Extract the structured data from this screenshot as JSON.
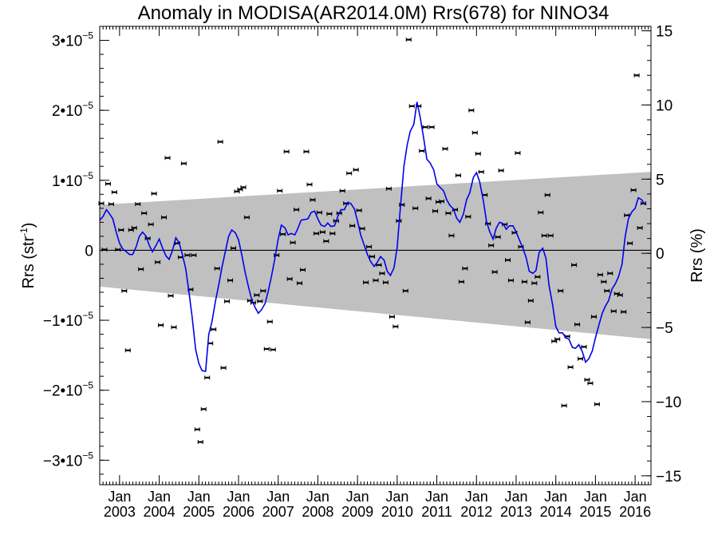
{
  "chart_data": {
    "type": "scatter",
    "title": "Anomaly in MODISA(AR2014.0M) Rrs(678) for NINO34",
    "ylabel_left": "Rrs (str",
    "ylabel_left_sup": "-1",
    "ylabel_left_close": ")",
    "ylabel_right": "Rrs (%)",
    "xlim": [
      2002.5,
      2016.4
    ],
    "ylim": [
      -3.35e-05,
      3.2e-05
    ],
    "y_right_lim": [
      -15.6,
      15.3
    ],
    "grid": false,
    "left_ticks": [
      {
        "v": 3e-05,
        "m": "3",
        "e": "−5"
      },
      {
        "v": 2e-05,
        "m": "2",
        "e": "−5"
      },
      {
        "v": 1e-05,
        "m": "1",
        "e": "−5"
      },
      {
        "v": 0,
        "plain": "0"
      },
      {
        "v": -1e-05,
        "m": "−1",
        "e": "−5"
      },
      {
        "v": -2e-05,
        "m": "−2",
        "e": "−5"
      },
      {
        "v": -3e-05,
        "m": "−3",
        "e": "−5"
      }
    ],
    "right_ticks": [
      15,
      10,
      5,
      0,
      -5,
      -10,
      -15
    ],
    "right_tick_labels": [
      "15",
      "10",
      "5",
      "0",
      "−5",
      "−10",
      "−15"
    ],
    "x_ticks": [
      {
        "x": 2003,
        "l1": "Jan",
        "l2": "2003"
      },
      {
        "x": 2004,
        "l1": "Jan",
        "l2": "2004"
      },
      {
        "x": 2005,
        "l1": "Jan",
        "l2": "2005"
      },
      {
        "x": 2006,
        "l1": "Jan",
        "l2": "2006"
      },
      {
        "x": 2007,
        "l1": "Jan",
        "l2": "2007"
      },
      {
        "x": 2008,
        "l1": "Jan",
        "l2": "2008"
      },
      {
        "x": 2009,
        "l1": "Jan",
        "l2": "2009"
      },
      {
        "x": 2010,
        "l1": "Jan",
        "l2": "2010"
      },
      {
        "x": 2011,
        "l1": "Jan",
        "l2": "2011"
      },
      {
        "x": 2012,
        "l1": "Jan",
        "l2": "2012"
      },
      {
        "x": 2013,
        "l1": "Jan",
        "l2": "2013"
      },
      {
        "x": 2014,
        "l1": "Jan",
        "l2": "2014"
      },
      {
        "x": 2015,
        "l1": "Jan",
        "l2": "2015"
      },
      {
        "x": 2016,
        "l1": "Jan",
        "l2": "2016"
      }
    ],
    "band": {
      "upper": [
        [
          2002.5,
          6.5e-06
        ],
        [
          2016.4,
          1.12e-05
        ]
      ],
      "lower": [
        [
          2002.5,
          -5.2e-06
        ],
        [
          2016.4,
          -1.27e-05
        ]
      ],
      "color": "#c0c0c0"
    },
    "line_color": "#0000ee",
    "points": [
      [
        2002.54,
        6.7e-06
      ],
      [
        2002.62,
        1e-07
      ],
      [
        2002.71,
        9.5e-06
      ],
      [
        2002.79,
        6.6e-06
      ],
      [
        2002.87,
        8.3e-06
      ],
      [
        2002.96,
        1e-07
      ],
      [
        2003.04,
        2.9e-06
      ],
      [
        2003.12,
        -5.8e-06
      ],
      [
        2003.21,
        -1.43e-05
      ],
      [
        2003.29,
        2.9e-06
      ],
      [
        2003.37,
        3.2e-06
      ],
      [
        2003.46,
        6.6e-06
      ],
      [
        2003.54,
        -2.7e-06
      ],
      [
        2003.62,
        5.3e-06
      ],
      [
        2003.71,
        1.7e-06
      ],
      [
        2003.79,
        3.7e-06
      ],
      [
        2003.87,
        8.1e-06
      ],
      [
        2003.96,
        -1.7e-06
      ],
      [
        2004.04,
        -1.07e-05
      ],
      [
        2004.12,
        4.7e-06
      ],
      [
        2004.21,
        1.32e-05
      ],
      [
        2004.29,
        -6.5e-06
      ],
      [
        2004.37,
        -1.1e-05
      ],
      [
        2004.46,
        1e-06
      ],
      [
        2004.54,
        -1e-06
      ],
      [
        2004.62,
        1.24e-05
      ],
      [
        2004.71,
        -7e-07
      ],
      [
        2004.79,
        -5.6e-06
      ],
      [
        2004.87,
        -7e-07
      ],
      [
        2004.96,
        -2.56e-05
      ],
      [
        2005.04,
        -2.74e-05
      ],
      [
        2005.12,
        -2.27e-05
      ],
      [
        2005.21,
        -1.82e-05
      ],
      [
        2005.29,
        -1.33e-05
      ],
      [
        2005.37,
        -1.13e-05
      ],
      [
        2005.46,
        -2.6e-06
      ],
      [
        2005.54,
        1.55e-05
      ],
      [
        2005.62,
        -1.68e-05
      ],
      [
        2005.71,
        -7.3e-06
      ],
      [
        2005.79,
        -4.3e-06
      ],
      [
        2005.87,
        3e-07
      ],
      [
        2005.96,
        8.4e-06
      ],
      [
        2006.04,
        8.7e-06
      ],
      [
        2006.12,
        9e-06
      ],
      [
        2006.21,
        4.7e-06
      ],
      [
        2006.29,
        -7.2e-06
      ],
      [
        2006.37,
        -7.5e-06
      ],
      [
        2006.46,
        -6.4e-06
      ],
      [
        2006.54,
        -7.3e-06
      ],
      [
        2006.62,
        -5.8e-06
      ],
      [
        2006.71,
        -1.41e-05
      ],
      [
        2006.79,
        -1.02e-05
      ],
      [
        2006.87,
        -1.42e-05
      ],
      [
        2006.96,
        -7e-07
      ],
      [
        2007.04,
        8.5e-06
      ],
      [
        2007.12,
        2.3e-06
      ],
      [
        2007.21,
        1.41e-05
      ],
      [
        2007.29,
        -4.1e-06
      ],
      [
        2007.37,
        1.1e-06
      ],
      [
        2007.46,
        5.8e-06
      ],
      [
        2007.54,
        -4.7e-06
      ],
      [
        2007.62,
        -2.8e-06
      ],
      [
        2007.71,
        1.41e-05
      ],
      [
        2007.79,
        9.4e-06
      ],
      [
        2007.87,
        7.2e-06
      ],
      [
        2007.96,
        2.4e-06
      ],
      [
        2008.04,
        5.4e-06
      ],
      [
        2008.12,
        2.6e-06
      ],
      [
        2008.21,
        1.3e-06
      ],
      [
        2008.29,
        5.2e-06
      ],
      [
        2008.37,
        2.4e-06
      ],
      [
        2008.46,
        4.2e-06
      ],
      [
        2008.54,
        5.3e-06
      ],
      [
        2008.62,
        8.5e-06
      ],
      [
        2008.71,
        6.7e-06
      ],
      [
        2008.79,
        1.1e-05
      ],
      [
        2008.87,
        3.5e-06
      ],
      [
        2008.96,
        1.15e-05
      ],
      [
        2009.04,
        5.7e-06
      ],
      [
        2009.12,
        3.1e-06
      ],
      [
        2009.21,
        -4.6e-06
      ],
      [
        2009.29,
        5e-07
      ],
      [
        2009.37,
        -9e-07
      ],
      [
        2009.46,
        -4.3e-06
      ],
      [
        2009.54,
        -2.1e-06
      ],
      [
        2009.62,
        -3.3e-06
      ],
      [
        2009.71,
        -4.6e-06
      ],
      [
        2009.79,
        8.8e-06
      ],
      [
        2009.87,
        -9.5e-06
      ],
      [
        2009.96,
        -1.09e-05
      ],
      [
        2010.04,
        4.2e-06
      ],
      [
        2010.12,
        6.5e-06
      ],
      [
        2010.21,
        -5.8e-06
      ],
      [
        2010.29,
        3.01e-05
      ],
      [
        2010.37,
        2.06e-05
      ],
      [
        2010.46,
        6e-06
      ],
      [
        2010.54,
        2.06e-05
      ],
      [
        2010.62,
        1.42e-05
      ],
      [
        2010.71,
        1.76e-05
      ],
      [
        2010.79,
        7.4e-06
      ],
      [
        2010.87,
        1.76e-05
      ],
      [
        2010.96,
        5.6e-06
      ],
      [
        2011.04,
        6.9e-06
      ],
      [
        2011.12,
        7e-06
      ],
      [
        2011.21,
        1.45e-05
      ],
      [
        2011.29,
        5.3e-06
      ],
      [
        2011.37,
        2.1e-06
      ],
      [
        2011.46,
        5.8e-06
      ],
      [
        2011.54,
        1.07e-05
      ],
      [
        2011.62,
        -4.5e-06
      ],
      [
        2011.71,
        -2.6e-06
      ],
      [
        2011.79,
        4.8e-06
      ],
      [
        2011.87,
        2e-05
      ],
      [
        2011.96,
        1.68e-05
      ],
      [
        2012.04,
        1.38e-05
      ],
      [
        2012.12,
        1.12e-05
      ],
      [
        2012.21,
        7.9e-06
      ],
      [
        2012.29,
        3.8e-06
      ],
      [
        2012.37,
        7e-07
      ],
      [
        2012.46,
        -3.1e-06
      ],
      [
        2012.54,
        1.9e-06
      ],
      [
        2012.62,
        1.14e-05
      ],
      [
        2012.71,
        3.7e-06
      ],
      [
        2012.79,
        -1.4e-06
      ],
      [
        2012.87,
        -4.3e-06
      ],
      [
        2012.96,
        2.5e-06
      ],
      [
        2013.04,
        1.39e-05
      ],
      [
        2013.12,
        5e-07
      ],
      [
        2013.21,
        -4.5e-06
      ],
      [
        2013.29,
        -1.03e-05
      ],
      [
        2013.37,
        -7.2e-06
      ],
      [
        2013.46,
        -4.7e-06
      ],
      [
        2013.54,
        -3.8e-06
      ],
      [
        2013.62,
        5.4e-06
      ],
      [
        2013.71,
        2.1e-06
      ],
      [
        2013.79,
        7.9e-06
      ],
      [
        2013.87,
        2.1e-06
      ],
      [
        2013.96,
        -1.3e-05
      ],
      [
        2014.04,
        -1.27e-05
      ],
      [
        2014.12,
        -5.8e-06
      ],
      [
        2014.21,
        -2.22e-05
      ],
      [
        2014.29,
        -1.23e-05
      ],
      [
        2014.37,
        -1.67e-05
      ],
      [
        2014.46,
        -2.1e-06
      ],
      [
        2014.54,
        -1.06e-05
      ],
      [
        2014.62,
        -1.55e-05
      ],
      [
        2014.71,
        -1.38e-05
      ],
      [
        2014.79,
        -1.85e-05
      ],
      [
        2014.87,
        -1.9e-05
      ],
      [
        2014.96,
        -9.5e-06
      ],
      [
        2015.04,
        -2.2e-05
      ],
      [
        2015.12,
        -3.5e-06
      ],
      [
        2015.21,
        -4.5e-06
      ],
      [
        2015.29,
        -5.8e-06
      ],
      [
        2015.37,
        -3.3e-06
      ],
      [
        2015.46,
        -8.7e-06
      ],
      [
        2015.54,
        -6.2e-06
      ],
      [
        2015.62,
        -6.4e-06
      ],
      [
        2015.71,
        -8.8e-06
      ],
      [
        2015.79,
        5e-06
      ],
      [
        2015.87,
        1e-06
      ],
      [
        2015.96,
        8.6e-06
      ],
      [
        2016.04,
        2.5e-05
      ],
      [
        2016.12,
        3.2e-06
      ],
      [
        2016.21,
        6.7e-06
      ]
    ],
    "line": [
      [
        2002.5,
        4.3e-06
      ],
      [
        2002.58,
        4.8e-06
      ],
      [
        2002.67,
        5.8e-06
      ],
      [
        2002.75,
        5.2e-06
      ],
      [
        2002.83,
        4.5e-06
      ],
      [
        2002.92,
        2.5e-06
      ],
      [
        2003.0,
        1e-06
      ],
      [
        2003.08,
        2e-07
      ],
      [
        2003.17,
        -2e-07
      ],
      [
        2003.25,
        -6e-07
      ],
      [
        2003.33,
        -6e-07
      ],
      [
        2003.42,
        5e-07
      ],
      [
        2003.5,
        2e-06
      ],
      [
        2003.58,
        2.6e-06
      ],
      [
        2003.67,
        2e-06
      ],
      [
        2003.75,
        7e-07
      ],
      [
        2003.83,
        -2e-07
      ],
      [
        2003.92,
        7e-07
      ],
      [
        2004.0,
        1.6e-06
      ],
      [
        2004.08,
        4e-07
      ],
      [
        2004.17,
        -8e-07
      ],
      [
        2004.25,
        -1.3e-06
      ],
      [
        2004.33,
        -1e-07
      ],
      [
        2004.42,
        1.8e-06
      ],
      [
        2004.5,
        1.1e-06
      ],
      [
        2004.58,
        -5e-07
      ],
      [
        2004.67,
        -2.7e-06
      ],
      [
        2004.75,
        -6e-06
      ],
      [
        2004.83,
        -9.5e-06
      ],
      [
        2004.92,
        -1.42e-05
      ],
      [
        2005.0,
        -1.62e-05
      ],
      [
        2005.08,
        -1.72e-05
      ],
      [
        2005.17,
        -1.73e-05
      ],
      [
        2005.25,
        -1.2e-05
      ],
      [
        2005.33,
        -1.02e-05
      ],
      [
        2005.42,
        -7.2e-06
      ],
      [
        2005.5,
        -5e-06
      ],
      [
        2005.58,
        -2.5e-06
      ],
      [
        2005.67,
        -1e-07
      ],
      [
        2005.75,
        2e-06
      ],
      [
        2005.83,
        2.9e-06
      ],
      [
        2005.92,
        2.5e-06
      ],
      [
        2006.0,
        1.5e-06
      ],
      [
        2006.08,
        -6e-07
      ],
      [
        2006.17,
        -3.2e-06
      ],
      [
        2006.25,
        -5.2e-06
      ],
      [
        2006.33,
        -7e-06
      ],
      [
        2006.42,
        -8.2e-06
      ],
      [
        2006.5,
        -9e-06
      ],
      [
        2006.58,
        -8.5e-06
      ],
      [
        2006.67,
        -7.6e-06
      ],
      [
        2006.75,
        -5.8e-06
      ],
      [
        2006.83,
        -3.7e-06
      ],
      [
        2006.92,
        -1.1e-06
      ],
      [
        2007.0,
        1.6e-06
      ],
      [
        2007.08,
        3.6e-06
      ],
      [
        2007.17,
        3.2e-06
      ],
      [
        2007.25,
        2.2e-06
      ],
      [
        2007.33,
        2.4e-06
      ],
      [
        2007.42,
        2.2e-06
      ],
      [
        2007.5,
        3.2e-06
      ],
      [
        2007.58,
        4.3e-06
      ],
      [
        2007.67,
        4.4e-06
      ],
      [
        2007.75,
        4.5e-06
      ],
      [
        2007.83,
        5.4e-06
      ],
      [
        2007.92,
        5.6e-06
      ],
      [
        2008.0,
        4.5e-06
      ],
      [
        2008.08,
        3.6e-06
      ],
      [
        2008.17,
        3.4e-06
      ],
      [
        2008.25,
        3.9e-06
      ],
      [
        2008.33,
        3.4e-06
      ],
      [
        2008.42,
        3.5e-06
      ],
      [
        2008.5,
        4.8e-06
      ],
      [
        2008.58,
        5.8e-06
      ],
      [
        2008.67,
        5.8e-06
      ],
      [
        2008.75,
        6.8e-06
      ],
      [
        2008.83,
        6.7e-06
      ],
      [
        2008.92,
        5.9e-06
      ],
      [
        2009.0,
        4.2e-06
      ],
      [
        2009.08,
        2.2e-06
      ],
      [
        2009.17,
        7e-07
      ],
      [
        2009.25,
        -6e-07
      ],
      [
        2009.33,
        -1.6e-06
      ],
      [
        2009.42,
        -2.3e-06
      ],
      [
        2009.5,
        -1.7e-06
      ],
      [
        2009.58,
        -9e-07
      ],
      [
        2009.67,
        -1.4e-06
      ],
      [
        2009.75,
        -3e-06
      ],
      [
        2009.83,
        -3.6e-06
      ],
      [
        2009.92,
        -2.5e-06
      ],
      [
        2010.0,
        4e-07
      ],
      [
        2010.08,
        6e-06
      ],
      [
        2010.17,
        1.2e-05
      ],
      [
        2010.25,
        1.5e-05
      ],
      [
        2010.33,
        1.7e-05
      ],
      [
        2010.42,
        1.8e-05
      ],
      [
        2010.5,
        2.12e-05
      ],
      [
        2010.58,
        1.9e-05
      ],
      [
        2010.67,
        1.6e-05
      ],
      [
        2010.75,
        1.3e-05
      ],
      [
        2010.83,
        1.25e-05
      ],
      [
        2010.92,
        1.15e-05
      ],
      [
        2011.0,
        9.5e-06
      ],
      [
        2011.08,
        9e-06
      ],
      [
        2011.17,
        8.5e-06
      ],
      [
        2011.25,
        7.2e-06
      ],
      [
        2011.33,
        6.4e-06
      ],
      [
        2011.42,
        5.9e-06
      ],
      [
        2011.5,
        4.6e-06
      ],
      [
        2011.58,
        4e-06
      ],
      [
        2011.67,
        5.2e-06
      ],
      [
        2011.75,
        7.2e-06
      ],
      [
        2011.83,
        8.2e-06
      ],
      [
        2011.92,
        1.04e-05
      ],
      [
        2012.0,
        1.11e-05
      ],
      [
        2012.08,
        9.8e-06
      ],
      [
        2012.17,
        7.2e-06
      ],
      [
        2012.25,
        4.2e-06
      ],
      [
        2012.33,
        2.7e-06
      ],
      [
        2012.42,
        1.6e-06
      ],
      [
        2012.5,
        3.2e-06
      ],
      [
        2012.58,
        4e-06
      ],
      [
        2012.67,
        3.8e-06
      ],
      [
        2012.75,
        3e-06
      ],
      [
        2012.83,
        3.5e-06
      ],
      [
        2012.92,
        3.5e-06
      ],
      [
        2013.0,
        2.6e-06
      ],
      [
        2013.08,
        1.5e-06
      ],
      [
        2013.17,
        3e-07
      ],
      [
        2013.25,
        -1e-06
      ],
      [
        2013.33,
        -3e-06
      ],
      [
        2013.42,
        -3.3e-06
      ],
      [
        2013.5,
        -2.9e-06
      ],
      [
        2013.58,
        -3e-07
      ],
      [
        2013.67,
        3e-07
      ],
      [
        2013.75,
        -1.1e-06
      ],
      [
        2013.83,
        -5e-06
      ],
      [
        2013.92,
        -7.8e-06
      ],
      [
        2014.0,
        -1.09e-05
      ],
      [
        2014.08,
        -1.18e-05
      ],
      [
        2014.17,
        -1.18e-05
      ],
      [
        2014.25,
        -1.25e-05
      ],
      [
        2014.33,
        -1.27e-05
      ],
      [
        2014.42,
        -1.39e-05
      ],
      [
        2014.5,
        -1.4e-05
      ],
      [
        2014.58,
        -1.35e-05
      ],
      [
        2014.67,
        -1.45e-05
      ],
      [
        2014.75,
        -1.6e-05
      ],
      [
        2014.83,
        -1.55e-05
      ],
      [
        2014.92,
        -1.44e-05
      ],
      [
        2015.0,
        -1.25e-05
      ],
      [
        2015.08,
        -1.08e-05
      ],
      [
        2015.17,
        -9e-06
      ],
      [
        2015.25,
        -8e-06
      ],
      [
        2015.33,
        -7.2e-06
      ],
      [
        2015.42,
        -5.5e-06
      ],
      [
        2015.5,
        -4.8e-06
      ],
      [
        2015.58,
        -3.8e-06
      ],
      [
        2015.67,
        -2e-06
      ],
      [
        2015.75,
        2e-06
      ],
      [
        2015.83,
        4.5e-06
      ],
      [
        2015.92,
        5.5e-06
      ],
      [
        2016.0,
        6e-06
      ],
      [
        2016.08,
        7.5e-06
      ],
      [
        2016.17,
        7.2e-06
      ],
      [
        2016.25,
        6.5e-06
      ]
    ]
  }
}
